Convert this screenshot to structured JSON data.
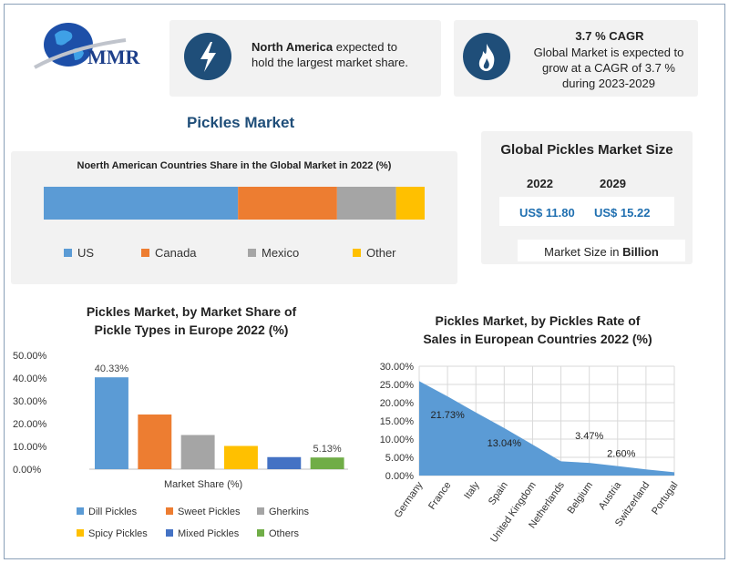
{
  "brand": {
    "logo_text": "MMR"
  },
  "info_cards": [
    {
      "icon": "lightning-icon",
      "bold": "North America",
      "rest": " expected to",
      "line2": "hold the largest market share."
    },
    {
      "icon": "flame-icon",
      "headline": "3.7 % CAGR",
      "line1": "Global Market is expected to",
      "line2": "grow at a CAGR of 3.7 %",
      "line3": "during 2023-2029"
    }
  ],
  "page_title": "Pickles Market",
  "market_size": {
    "title": "Global Pickles Market Size",
    "years": [
      "2022",
      "2029"
    ],
    "values": [
      "US$ 11.80",
      "US$ 15.22"
    ],
    "unit_prefix": "Market Size in ",
    "unit_bold": "Billion"
  },
  "colors": {
    "blue": "#5b9bd5",
    "orange": "#ed7d31",
    "gray": "#a5a5a5",
    "yellow": "#ffc000",
    "darkblue": "#4472c4",
    "green": "#70ad47",
    "navy": "#1f4e79"
  },
  "chart_data": [
    {
      "type": "bar",
      "stacked": true,
      "orientation": "horizontal",
      "title": "Noerth American Countries Share in the Global Market in 2022  (%)",
      "series": [
        {
          "name": "US",
          "values": [
            51
          ],
          "color": "#5b9bd5"
        },
        {
          "name": "Canada",
          "values": [
            26
          ],
          "color": "#ed7d31"
        },
        {
          "name": "Mexico",
          "values": [
            15.5
          ],
          "color": "#a5a5a5"
        },
        {
          "name": "Other",
          "values": [
            7.5
          ],
          "color": "#ffc000"
        }
      ],
      "legend": "bottom"
    },
    {
      "type": "bar",
      "title_line1": "Pickles Market, by Market Share of",
      "title_line2": "Pickle Types in Europe 2022 (%)",
      "categories": [
        "Dill Pickles",
        "Sweet Pickles",
        "Gherkins",
        "Spicy Pickles",
        "Mixed Pickles",
        "Others"
      ],
      "values": [
        40.33,
        24,
        15,
        10.2,
        5.3,
        5.13
      ],
      "colors": [
        "#5b9bd5",
        "#ed7d31",
        "#a5a5a5",
        "#ffc000",
        "#4472c4",
        "#70ad47"
      ],
      "data_labels": {
        "0": "40.33%",
        "5": "5.13%"
      },
      "yticks": [
        "0.00%",
        "10.00%",
        "20.00%",
        "30.00%",
        "40.00%",
        "50.00%"
      ],
      "ylim": [
        0,
        50
      ],
      "xlabel": "Market Share (%)",
      "legend": "bottom"
    },
    {
      "type": "area",
      "title_line1": "Pickles Market, by Pickles Rate of",
      "title_line2": "Sales in European Countries 2022 (%)",
      "categories": [
        "Germany",
        "France",
        "Italy",
        "Spain",
        "United Kingdom",
        "Netherlands",
        "Belgium",
        "Austria",
        "Switzerland",
        "Portugal"
      ],
      "values": [
        25.9,
        21.73,
        17.3,
        13.04,
        8.5,
        3.9,
        3.47,
        2.6,
        1.7,
        0.9
      ],
      "annotations": [
        {
          "index": 1,
          "label": "21.73%"
        },
        {
          "index": 3,
          "label": "13.04%"
        },
        {
          "index": 6,
          "label": "3.47%"
        },
        {
          "index": 7,
          "label": "2.60%"
        }
      ],
      "yticks": [
        "0.00%",
        "5.00%",
        "10.00%",
        "15.00%",
        "20.00%",
        "25.00%",
        "30.00%"
      ],
      "ylim": [
        0,
        30
      ],
      "color": "#5b9bd5",
      "grid": true
    }
  ]
}
